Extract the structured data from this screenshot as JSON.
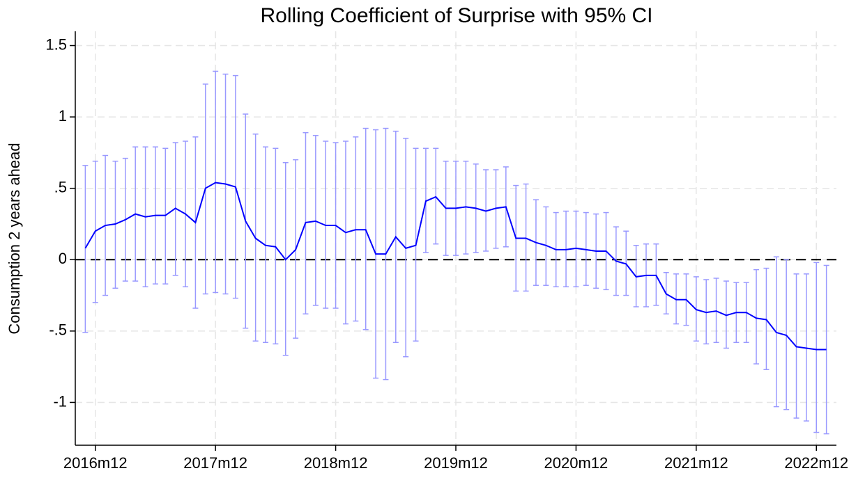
{
  "chart_data": {
    "type": "line",
    "title": "Rolling Coefficient of Surprise with 95% CI",
    "y_label": "Consumption 2 years ahead",
    "x": [
      "2016m11",
      "2016m12",
      "2017m01",
      "2017m02",
      "2017m03",
      "2017m04",
      "2017m05",
      "2017m06",
      "2017m07",
      "2017m08",
      "2017m09",
      "2017m10",
      "2017m11",
      "2017m12",
      "2018m01",
      "2018m02",
      "2018m03",
      "2018m04",
      "2018m05",
      "2018m06",
      "2018m07",
      "2018m08",
      "2018m09",
      "2018m10",
      "2018m11",
      "2018m12",
      "2019m01",
      "2019m02",
      "2019m03",
      "2019m04",
      "2019m05",
      "2019m06",
      "2019m07",
      "2019m08",
      "2019m09",
      "2019m10",
      "2019m11",
      "2019m12",
      "2020m01",
      "2020m02",
      "2020m03",
      "2020m04",
      "2020m05",
      "2020m06",
      "2020m07",
      "2020m08",
      "2020m09",
      "2020m10",
      "2020m11",
      "2020m12",
      "2021m01",
      "2021m02",
      "2021m03",
      "2021m04",
      "2021m05",
      "2021m06",
      "2021m07",
      "2021m08",
      "2021m09",
      "2021m10",
      "2021m11",
      "2021m12",
      "2022m01",
      "2022m02",
      "2022m03",
      "2022m04",
      "2022m05",
      "2022m06",
      "2022m07",
      "2022m08",
      "2022m09",
      "2022m10",
      "2022m11",
      "2022m12",
      "2023m01"
    ],
    "series": [
      {
        "color": "#0000ff",
        "values": [
          0.08,
          0.2,
          0.24,
          0.25,
          0.28,
          0.32,
          0.3,
          0.31,
          0.31,
          0.36,
          0.32,
          0.26,
          0.5,
          0.54,
          0.53,
          0.51,
          0.27,
          0.15,
          0.1,
          0.09,
          0.0,
          0.07,
          0.26,
          0.27,
          0.24,
          0.24,
          0.19,
          0.21,
          0.21,
          0.04,
          0.04,
          0.16,
          0.08,
          0.1,
          0.41,
          0.44,
          0.36,
          0.36,
          0.37,
          0.36,
          0.34,
          0.36,
          0.37,
          0.15,
          0.15,
          0.12,
          0.1,
          0.07,
          0.07,
          0.08,
          0.07,
          0.06,
          0.06,
          -0.01,
          -0.03,
          -0.12,
          -0.11,
          -0.11,
          -0.24,
          -0.28,
          -0.28,
          -0.35,
          -0.37,
          -0.36,
          -0.39,
          -0.37,
          -0.37,
          -0.41,
          -0.42,
          -0.51,
          -0.53,
          -0.61,
          -0.62,
          -0.63,
          -0.63
        ],
        "ci_color": "#9999ff",
        "ci_lower": [
          -0.51,
          -0.3,
          -0.25,
          -0.2,
          -0.15,
          -0.15,
          -0.19,
          -0.17,
          -0.17,
          -0.11,
          -0.19,
          -0.34,
          -0.24,
          -0.23,
          -0.24,
          -0.27,
          -0.48,
          -0.57,
          -0.58,
          -0.59,
          -0.67,
          -0.55,
          -0.38,
          -0.32,
          -0.34,
          -0.34,
          -0.45,
          -0.43,
          -0.49,
          -0.83,
          -0.84,
          -0.58,
          -0.68,
          -0.57,
          0.05,
          0.11,
          0.03,
          0.03,
          0.04,
          0.05,
          0.06,
          0.08,
          0.09,
          -0.22,
          -0.22,
          -0.18,
          -0.18,
          -0.19,
          -0.19,
          -0.19,
          -0.18,
          -0.2,
          -0.21,
          -0.25,
          -0.25,
          -0.33,
          -0.33,
          -0.32,
          -0.38,
          -0.45,
          -0.46,
          -0.57,
          -0.59,
          -0.58,
          -0.62,
          -0.58,
          -0.58,
          -0.73,
          -0.77,
          -1.03,
          -1.05,
          -1.11,
          -1.13,
          -1.21,
          -1.22
        ],
        "ci_upper": [
          0.66,
          0.69,
          0.73,
          0.69,
          0.71,
          0.79,
          0.79,
          0.79,
          0.78,
          0.82,
          0.83,
          0.86,
          1.23,
          1.32,
          1.3,
          1.29,
          1.02,
          0.88,
          0.79,
          0.78,
          0.68,
          0.7,
          0.89,
          0.87,
          0.83,
          0.82,
          0.83,
          0.86,
          0.92,
          0.91,
          0.92,
          0.9,
          0.85,
          0.78,
          0.78,
          0.78,
          0.69,
          0.69,
          0.69,
          0.67,
          0.63,
          0.63,
          0.65,
          0.52,
          0.53,
          0.42,
          0.37,
          0.33,
          0.34,
          0.34,
          0.33,
          0.32,
          0.33,
          0.23,
          0.2,
          0.1,
          0.11,
          0.11,
          -0.09,
          -0.1,
          -0.1,
          -0.12,
          -0.14,
          -0.13,
          -0.15,
          -0.16,
          -0.16,
          -0.07,
          -0.06,
          0.02,
          0.0,
          -0.1,
          -0.1,
          -0.02,
          -0.04
        ]
      }
    ],
    "reference_line": 0,
    "xlim": [
      "2016m10",
      "2023m02"
    ],
    "xticks": [
      "2016m12",
      "2017m12",
      "2018m12",
      "2019m12",
      "2020m12",
      "2021m12",
      "2022m12"
    ],
    "ylim": [
      -1.3,
      1.6
    ],
    "yticks": [
      {
        "value": -1,
        "label": "-1"
      },
      {
        "value": -0.5,
        "label": "-.5"
      },
      0,
      {
        "value": 0.5,
        "label": ".5"
      },
      1,
      1.5
    ],
    "grid": true
  }
}
